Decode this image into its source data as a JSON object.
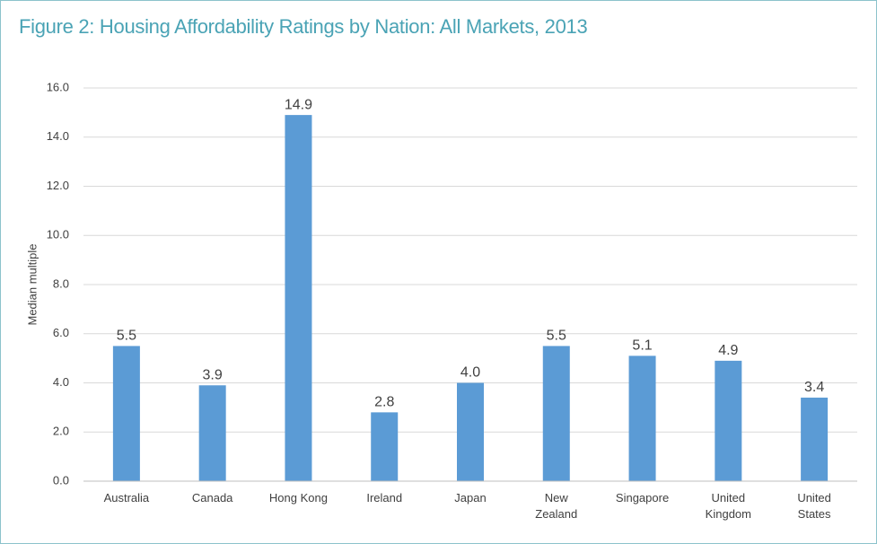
{
  "chart_data": {
    "type": "bar",
    "title": "Figure 2: Housing Affordability Ratings by Nation: All Markets, 2013",
    "y_label": "Median multiple",
    "categories": [
      "Australia",
      "Canada",
      "Hong Kong",
      "Ireland",
      "Japan",
      "New Zealand",
      "Singapore",
      "United Kingdom",
      "United States"
    ],
    "values": [
      5.5,
      3.9,
      14.9,
      2.8,
      4.0,
      5.5,
      5.1,
      4.9,
      3.4
    ],
    "value_labels": [
      "5.5",
      "3.9",
      "14.9",
      "2.8",
      "4.0",
      "5.5",
      "5.1",
      "4.9",
      "3.4"
    ],
    "color": "#5b9bd5",
    "ylim": [
      0,
      16
    ],
    "yticks": [
      {
        "value": 0,
        "label": "0.0"
      },
      {
        "value": 2,
        "label": "2.0"
      },
      {
        "value": 4,
        "label": "4.0"
      },
      {
        "value": 6,
        "label": "6.0"
      },
      {
        "value": 8,
        "label": "8.0"
      },
      {
        "value": 10,
        "label": "10.0"
      },
      {
        "value": 12,
        "label": "12.0"
      },
      {
        "value": 14,
        "label": "14.0"
      },
      {
        "value": 16,
        "label": "16.0"
      }
    ],
    "grid": true
  }
}
